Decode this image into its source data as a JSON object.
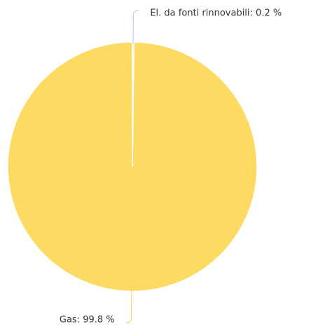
{
  "chart_data": {
    "type": "pie",
    "labels": [
      "El. da fonti rinnovabili: 0.2 %",
      "Gas: 99.8 %"
    ],
    "values": [
      0.2,
      99.8
    ],
    "colors": [
      "#c9d3f2",
      "#fddb63"
    ]
  }
}
